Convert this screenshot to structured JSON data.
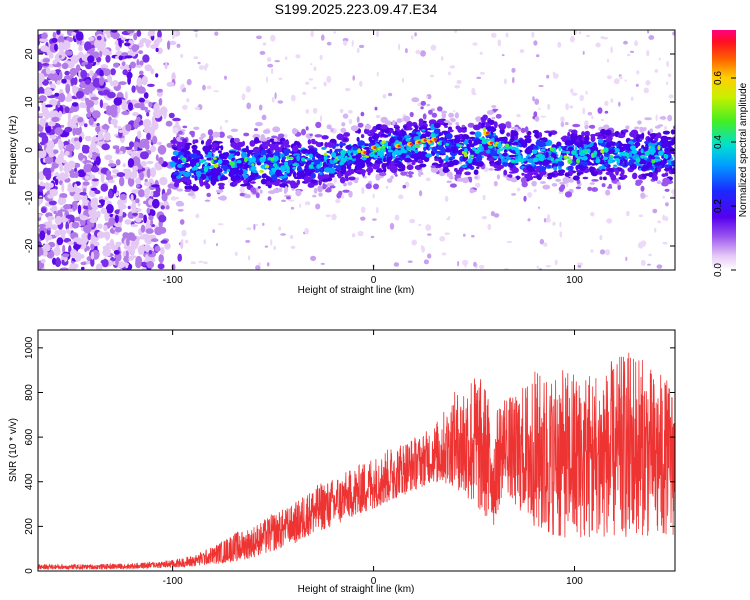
{
  "title": "S199.2025.223.09.47.E34",
  "chart_data": [
    {
      "type": "heatmap",
      "title": "S199.2025.223.09.47.E34",
      "xlabel": "Height of straight line (km)",
      "ylabel": "Frequency (Hz)",
      "xlim": [
        -167,
        150
      ],
      "ylim": [
        -25,
        25
      ],
      "xticks": [
        -100,
        0,
        100
      ],
      "yticks": [
        -20,
        -10,
        0,
        10,
        20
      ],
      "ridge_x": [
        -100,
        -90,
        -80,
        -70,
        -60,
        -50,
        -40,
        -30,
        -20,
        -10,
        0,
        10,
        20,
        30,
        40,
        50,
        55,
        60,
        70,
        80,
        90,
        100,
        110,
        120,
        130,
        140,
        150
      ],
      "ridge_y": [
        -3,
        -3,
        -3,
        -3,
        -3,
        -3,
        -3,
        -2.5,
        -2,
        -1,
        0,
        0.5,
        1,
        2,
        0,
        -1,
        3,
        1,
        -1,
        -1,
        -1,
        -1,
        -1,
        -1,
        -1,
        -1,
        -1
      ],
      "colorbar": {
        "label": "Normalized spectral amplitude",
        "range": [
          0,
          0.75
        ],
        "ticks": [
          0.0,
          0.2,
          0.4,
          0.6
        ],
        "tick_labels": [
          "0.0",
          "0.2",
          "0.4",
          "0.6"
        ]
      },
      "grid": false
    },
    {
      "type": "line",
      "xlabel": "Height of straight line (km)",
      "ylabel": "SNR (10 * v/v)",
      "xlim": [
        -167,
        150
      ],
      "ylim": [
        0,
        1080
      ],
      "xticks": [
        -100,
        0,
        100
      ],
      "yticks": [
        0,
        200,
        400,
        600,
        800,
        1000
      ],
      "series_color": "#ee3333",
      "envelope_x": [
        -167,
        -140,
        -120,
        -100,
        -90,
        -80,
        -70,
        -60,
        -50,
        -40,
        -30,
        -20,
        -10,
        0,
        10,
        20,
        30,
        40,
        50,
        55,
        60,
        65,
        70,
        80,
        90,
        100,
        110,
        120,
        130,
        140,
        150
      ],
      "envelope_low": [
        8,
        8,
        10,
        15,
        20,
        30,
        40,
        60,
        90,
        120,
        170,
        200,
        240,
        280,
        320,
        360,
        400,
        380,
        300,
        250,
        200,
        380,
        300,
        200,
        150,
        150,
        150,
        150,
        150,
        160,
        160
      ],
      "envelope_high": [
        30,
        30,
        35,
        50,
        70,
        110,
        170,
        200,
        260,
        300,
        380,
        420,
        460,
        520,
        560,
        600,
        650,
        800,
        900,
        850,
        700,
        800,
        780,
        900,
        900,
        900,
        900,
        950,
        1000,
        900,
        850
      ],
      "grid": false
    }
  ]
}
